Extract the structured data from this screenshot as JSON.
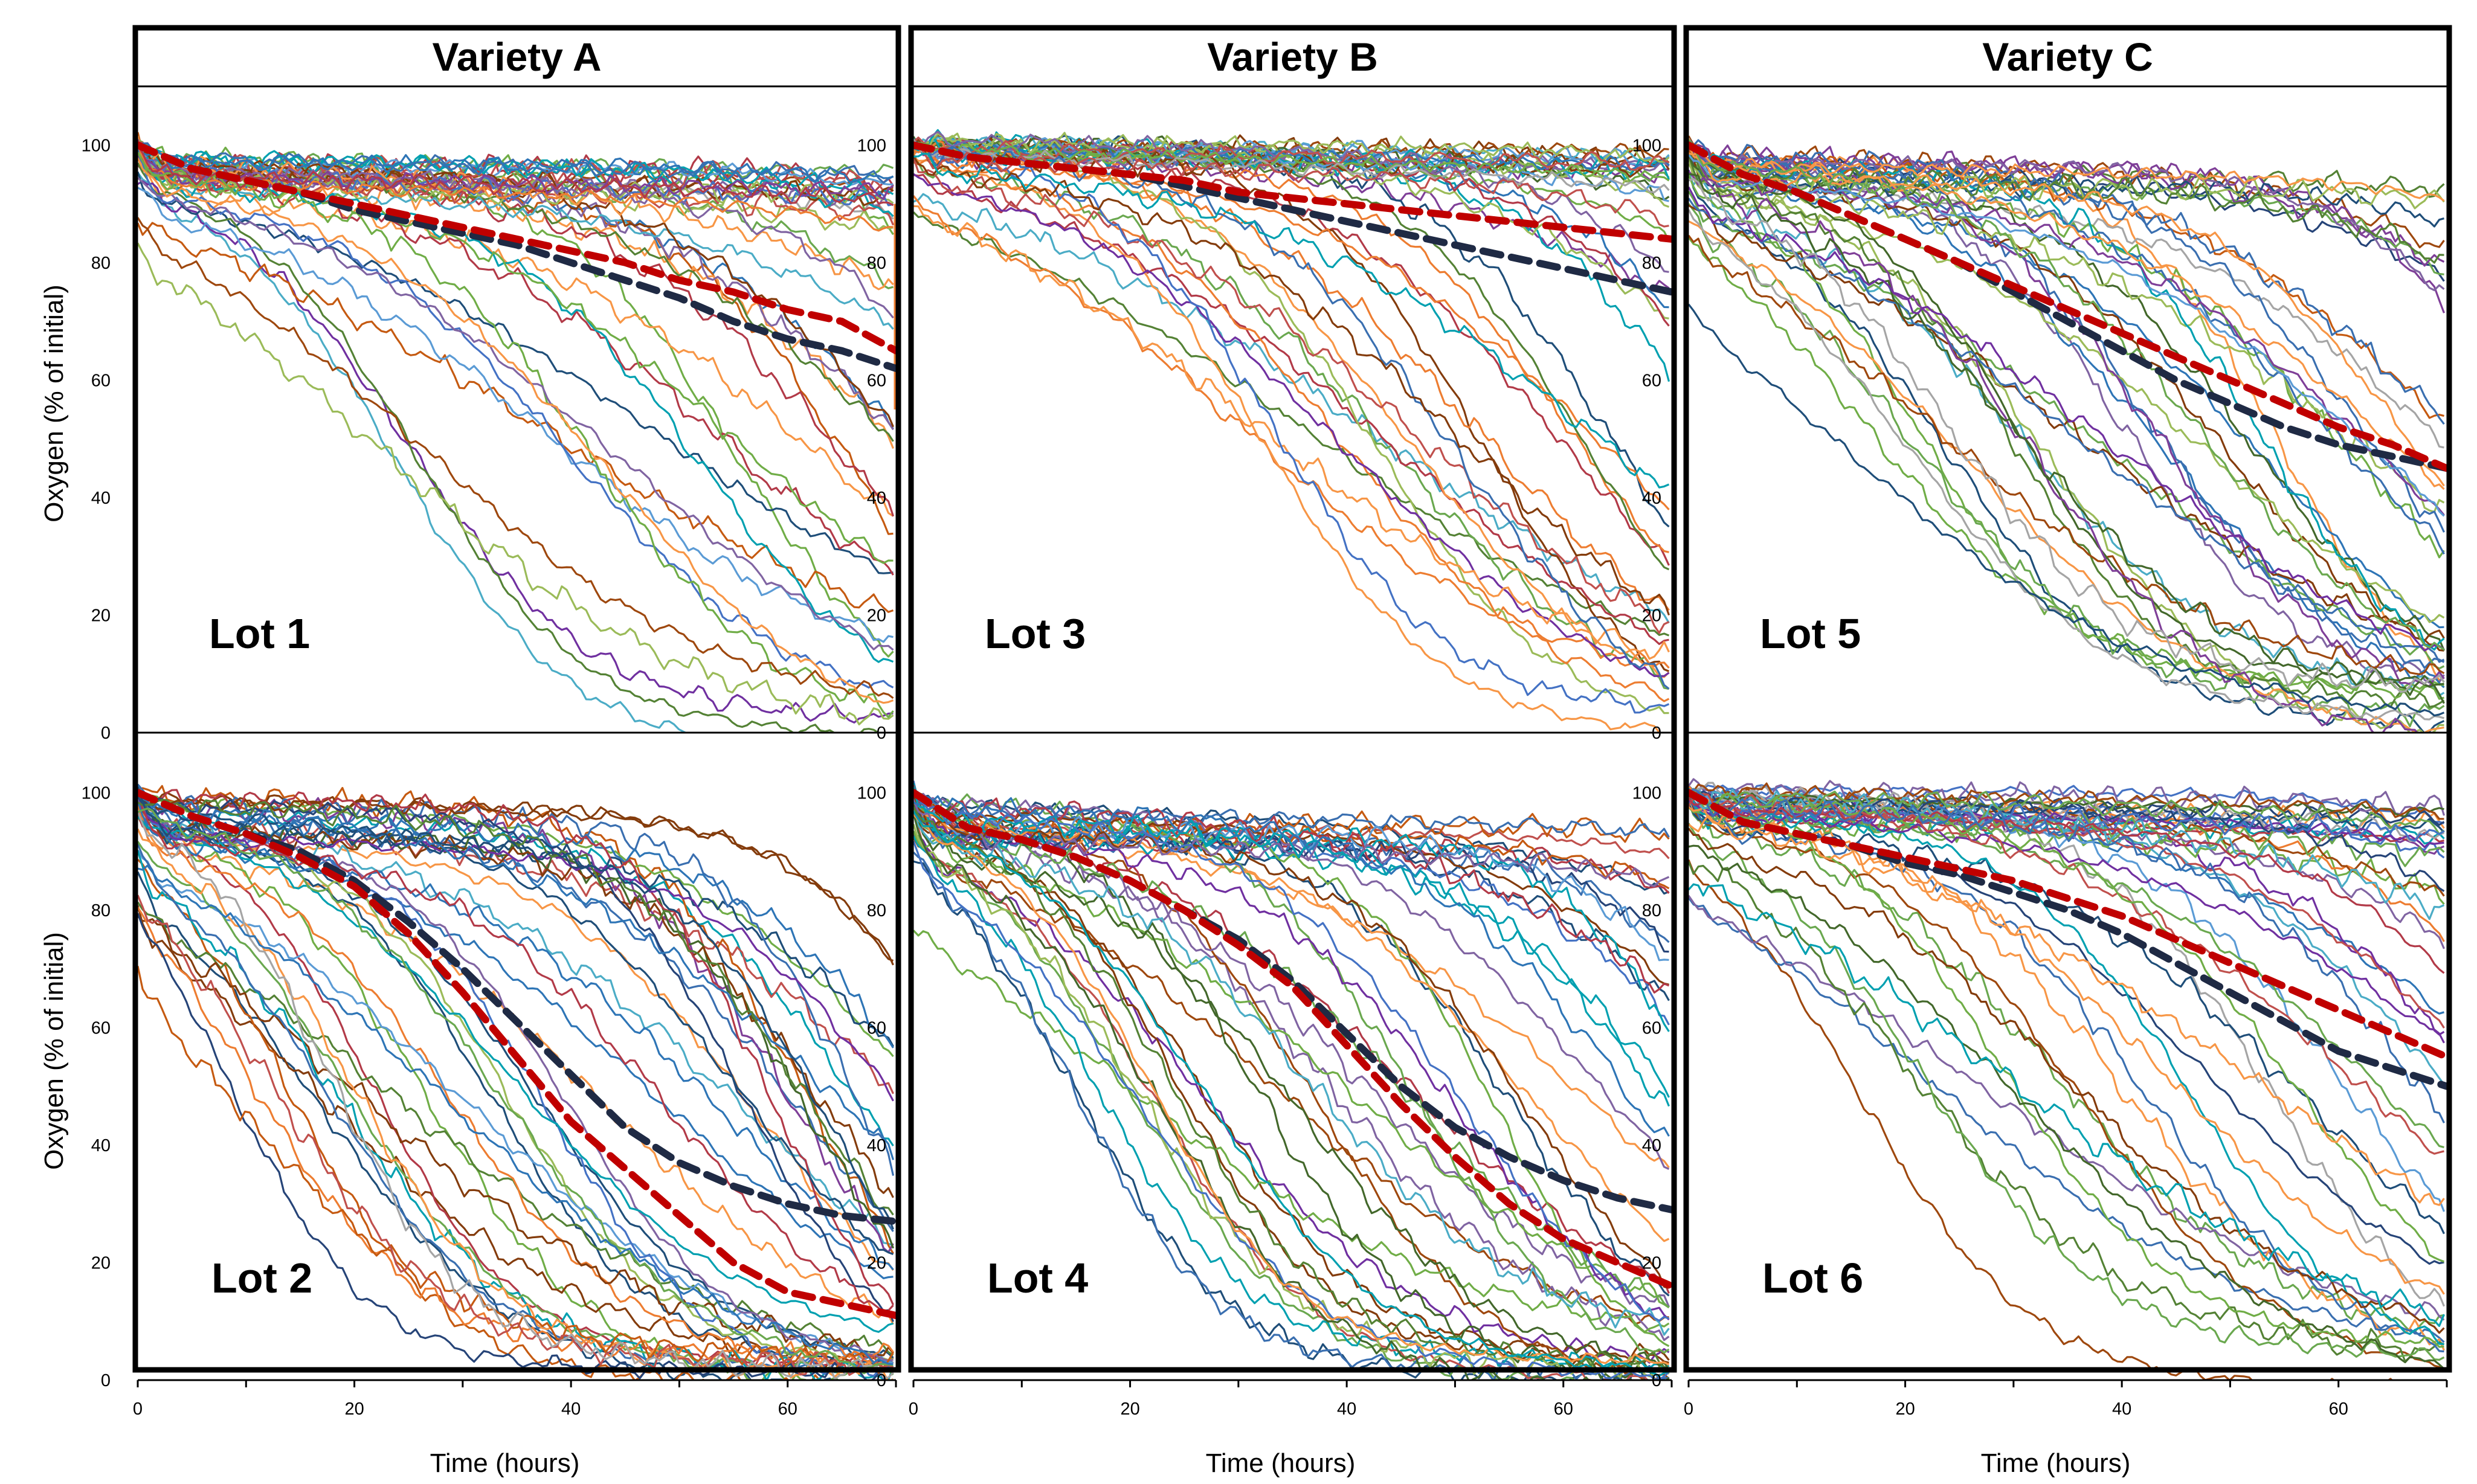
{
  "figure": {
    "y_axis_title": "Oxygen (% of initial)",
    "x_axis_title": "Time (hours)"
  },
  "palette": [
    "#4472c4",
    "#ed7d31",
    "#a5a5a5",
    "#70ad47",
    "#5b9bd5",
    "#7f3f98",
    "#c0504d",
    "#9bbb59",
    "#264478",
    "#9e480e",
    "#43682b",
    "#2e75b6",
    "#8064a2",
    "#4bacc6",
    "#f79646",
    "#1f4e79",
    "#843c0c",
    "#548235",
    "#7030a0",
    "#00a0b0",
    "#c55a11",
    "#3a6fb0",
    "#b23a48",
    "#6aa84f"
  ],
  "mean_colors": {
    "variety_mean": "#c00000",
    "overall_mean": "#1f2a44"
  },
  "chart_data": [
    {
      "type": "line",
      "variety": "Variety A",
      "lot": "Lot 1",
      "xlim": [
        0,
        70
      ],
      "ylim": [
        0,
        110
      ],
      "x_ticks": [
        0,
        20,
        40,
        60
      ],
      "y_ticks": [
        0,
        20,
        40,
        60,
        80,
        100
      ],
      "n_lines": 48,
      "seed": 11,
      "onset_range": [
        20,
        140
      ],
      "rate_range": [
        0.05,
        0.13
      ],
      "floor_range": [
        0,
        10
      ],
      "plateau_range": [
        93,
        98
      ],
      "ref_hours": [
        70
      ],
      "red_mean": {
        "x": [
          0,
          5,
          10,
          15,
          20,
          25,
          30,
          35,
          40,
          45,
          50,
          55,
          60,
          65,
          70
        ],
        "y": [
          100,
          96,
          94,
          92,
          90,
          88,
          86,
          84,
          82,
          80,
          77,
          75,
          72,
          70,
          65
        ]
      },
      "black_mean": {
        "x": [
          0,
          5,
          10,
          15,
          20,
          25,
          30,
          35,
          40,
          45,
          50,
          55,
          60,
          65,
          70
        ],
        "y": [
          100,
          96,
          94,
          92,
          89,
          87,
          85,
          83,
          80,
          77,
          74,
          70,
          67,
          65,
          62
        ]
      }
    },
    {
      "type": "line",
      "variety": "Variety B",
      "lot": "Lot 3",
      "xlim": [
        0,
        70
      ],
      "ylim": [
        0,
        110
      ],
      "x_ticks": [
        0,
        20,
        40,
        60
      ],
      "y_ticks": [
        0,
        20,
        40,
        60,
        80,
        100
      ],
      "n_lines": 48,
      "seed": 23,
      "onset_range": [
        30,
        160
      ],
      "rate_range": [
        0.05,
        0.13
      ],
      "floor_range": [
        0,
        8
      ],
      "plateau_range": [
        97,
        101
      ],
      "ref_hours": [],
      "red_mean": {
        "x": [
          0,
          5,
          10,
          15,
          20,
          25,
          30,
          35,
          40,
          45,
          50,
          55,
          60,
          65,
          70
        ],
        "y": [
          100,
          98,
          97,
          96,
          95,
          94,
          92,
          91,
          90,
          89,
          88,
          87,
          86,
          85,
          84
        ]
      },
      "black_mean": {
        "x": [
          0,
          5,
          10,
          15,
          20,
          25,
          30,
          35,
          40,
          45,
          50,
          55,
          60,
          65,
          70
        ],
        "y": [
          100,
          98,
          97,
          96,
          95,
          93,
          91,
          89,
          87,
          85,
          83,
          81,
          79,
          77,
          75
        ]
      }
    },
    {
      "type": "line",
      "variety": "Variety C",
      "lot": "Lot 5",
      "xlim": [
        0,
        70
      ],
      "ylim": [
        0,
        110
      ],
      "x_ticks": [
        0,
        20,
        40,
        60
      ],
      "y_ticks": [
        0,
        20,
        40,
        60,
        80,
        100
      ],
      "n_lines": 52,
      "seed": 37,
      "onset_range": [
        12,
        110
      ],
      "rate_range": [
        0.06,
        0.14
      ],
      "floor_range": [
        0,
        10
      ],
      "plateau_range": [
        93,
        99
      ],
      "ref_hours": [],
      "red_mean": {
        "x": [
          0,
          5,
          10,
          15,
          20,
          25,
          30,
          35,
          40,
          45,
          50,
          55,
          60,
          65,
          70
        ],
        "y": [
          100,
          95,
          92,
          88,
          84,
          80,
          76,
          72,
          68,
          64,
          60,
          56,
          52,
          49,
          45
        ]
      },
      "black_mean": {
        "x": [
          0,
          5,
          10,
          15,
          20,
          25,
          30,
          35,
          40,
          45,
          50,
          55,
          60,
          65,
          70
        ],
        "y": [
          100,
          95,
          92,
          88,
          84,
          80,
          75,
          70,
          65,
          60,
          56,
          52,
          49,
          47,
          45
        ]
      }
    },
    {
      "type": "line",
      "variety": "Variety A",
      "lot": "Lot 2",
      "xlim": [
        0,
        70
      ],
      "ylim": [
        0,
        110
      ],
      "x_ticks": [
        0,
        20,
        40,
        60
      ],
      "y_ticks": [
        0,
        20,
        40,
        60,
        80,
        100
      ],
      "n_lines": 52,
      "seed": 41,
      "onset_range": [
        8,
        80
      ],
      "rate_range": [
        0.06,
        0.16
      ],
      "floor_range": [
        0,
        6
      ],
      "plateau_range": [
        92,
        100
      ],
      "ref_hours": [],
      "red_mean": {
        "x": [
          0,
          5,
          10,
          15,
          20,
          25,
          30,
          35,
          40,
          45,
          50,
          55,
          60,
          65,
          70
        ],
        "y": [
          100,
          96,
          93,
          89,
          84,
          76,
          66,
          55,
          44,
          36,
          28,
          20,
          15,
          13,
          11
        ]
      },
      "black_mean": {
        "x": [
          0,
          5,
          10,
          15,
          20,
          25,
          30,
          35,
          40,
          45,
          50,
          55,
          60,
          65,
          70
        ],
        "y": [
          100,
          96,
          93,
          90,
          85,
          78,
          70,
          61,
          52,
          43,
          37,
          33,
          30,
          28,
          27
        ]
      }
    },
    {
      "type": "line",
      "variety": "Variety B",
      "lot": "Lot 4",
      "xlim": [
        0,
        70
      ],
      "ylim": [
        0,
        110
      ],
      "x_ticks": [
        0,
        20,
        40,
        60
      ],
      "y_ticks": [
        0,
        20,
        40,
        60,
        80,
        100
      ],
      "n_lines": 52,
      "seed": 53,
      "onset_range": [
        12,
        100
      ],
      "rate_range": [
        0.06,
        0.15
      ],
      "floor_range": [
        0,
        8
      ],
      "plateau_range": [
        92,
        99
      ],
      "ref_hours": [],
      "red_mean": {
        "x": [
          0,
          5,
          10,
          15,
          20,
          25,
          30,
          35,
          40,
          45,
          50,
          55,
          60,
          65,
          70
        ],
        "y": [
          100,
          94,
          92,
          89,
          85,
          80,
          74,
          67,
          57,
          47,
          38,
          30,
          24,
          20,
          16
        ]
      },
      "black_mean": {
        "x": [
          0,
          5,
          10,
          15,
          20,
          25,
          30,
          35,
          40,
          45,
          50,
          55,
          60,
          65,
          70
        ],
        "y": [
          100,
          94,
          92,
          89,
          85,
          80,
          75,
          68,
          59,
          50,
          43,
          38,
          34,
          31,
          29
        ]
      }
    },
    {
      "type": "line",
      "variety": "Variety C",
      "lot": "Lot 6",
      "xlim": [
        0,
        70
      ],
      "ylim": [
        0,
        110
      ],
      "x_ticks": [
        0,
        20,
        40,
        60
      ],
      "y_ticks": [
        0,
        20,
        40,
        60,
        80,
        100
      ],
      "n_lines": 52,
      "seed": 67,
      "onset_range": [
        15,
        130
      ],
      "rate_range": [
        0.05,
        0.13
      ],
      "floor_range": [
        0,
        8
      ],
      "plateau_range": [
        94,
        101
      ],
      "ref_hours": [],
      "red_mean": {
        "x": [
          0,
          5,
          10,
          15,
          20,
          25,
          30,
          35,
          40,
          45,
          50,
          55,
          60,
          65,
          70
        ],
        "y": [
          100,
          95,
          93,
          91,
          89,
          87,
          85,
          82,
          79,
          75,
          71,
          67,
          63,
          59,
          55
        ]
      },
      "black_mean": {
        "x": [
          0,
          5,
          10,
          15,
          20,
          25,
          30,
          35,
          40,
          45,
          50,
          55,
          60,
          65,
          70
        ],
        "y": [
          100,
          95,
          93,
          91,
          88,
          86,
          83,
          80,
          76,
          71,
          66,
          61,
          56,
          53,
          50
        ]
      }
    }
  ]
}
